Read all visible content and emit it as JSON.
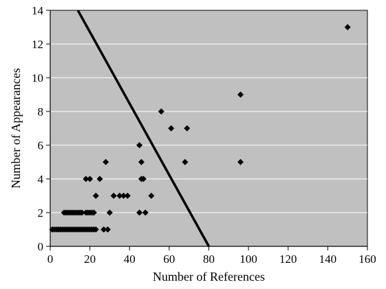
{
  "chart_data": {
    "type": "scatter",
    "title": "",
    "xlabel": "Number of References",
    "ylabel": "Number of Appearances",
    "xlim": [
      0,
      160
    ],
    "ylim": [
      0,
      14
    ],
    "x_ticks": [
      0,
      20,
      40,
      60,
      80,
      100,
      120,
      140,
      160
    ],
    "y_ticks": [
      0,
      2,
      4,
      6,
      8,
      10,
      12,
      14
    ],
    "grid": "horizontal",
    "legend": "none",
    "colors": {
      "plot_background": "#c0c0c0",
      "grid": "#ffffff",
      "marker": "#000000",
      "trend_line": "#000000"
    },
    "marker_shape": "diamond",
    "series": [
      {
        "points": [
          [
            1,
            1
          ],
          [
            2,
            1
          ],
          [
            3,
            1
          ],
          [
            4,
            1
          ],
          [
            5,
            1
          ],
          [
            6,
            1
          ],
          [
            7,
            1
          ],
          [
            8,
            1
          ],
          [
            9,
            1
          ],
          [
            10,
            1
          ],
          [
            11,
            1
          ],
          [
            12,
            1
          ],
          [
            13,
            1
          ],
          [
            14,
            1
          ],
          [
            15,
            1
          ],
          [
            16,
            1
          ],
          [
            17,
            1
          ],
          [
            18,
            1
          ],
          [
            19,
            1
          ],
          [
            20,
            1
          ],
          [
            21,
            1
          ],
          [
            22,
            1
          ],
          [
            23,
            1
          ],
          [
            27,
            1
          ],
          [
            29,
            1
          ],
          [
            7,
            2
          ],
          [
            8,
            2
          ],
          [
            9,
            2
          ],
          [
            10,
            2
          ],
          [
            11,
            2
          ],
          [
            12,
            2
          ],
          [
            13,
            2
          ],
          [
            14,
            2
          ],
          [
            15,
            2
          ],
          [
            16,
            2
          ],
          [
            18,
            2
          ],
          [
            19,
            2
          ],
          [
            20,
            2
          ],
          [
            21,
            2
          ],
          [
            22,
            2
          ],
          [
            30,
            2
          ],
          [
            45,
            2
          ],
          [
            48,
            2
          ],
          [
            23,
            3
          ],
          [
            32,
            3
          ],
          [
            35,
            3
          ],
          [
            37,
            3
          ],
          [
            39,
            3
          ],
          [
            51,
            3
          ],
          [
            18,
            4
          ],
          [
            20,
            4
          ],
          [
            25,
            4
          ],
          [
            46,
            4
          ],
          [
            47,
            4
          ],
          [
            28,
            5
          ],
          [
            46,
            5
          ],
          [
            68,
            5
          ],
          [
            96,
            5
          ],
          [
            45,
            6
          ],
          [
            61,
            7
          ],
          [
            69,
            7
          ],
          [
            56,
            8
          ],
          [
            96,
            9
          ],
          [
            150,
            13
          ]
        ]
      }
    ],
    "trend_line": {
      "from": [
        13,
        14.2
      ],
      "to": [
        80,
        0
      ]
    }
  }
}
